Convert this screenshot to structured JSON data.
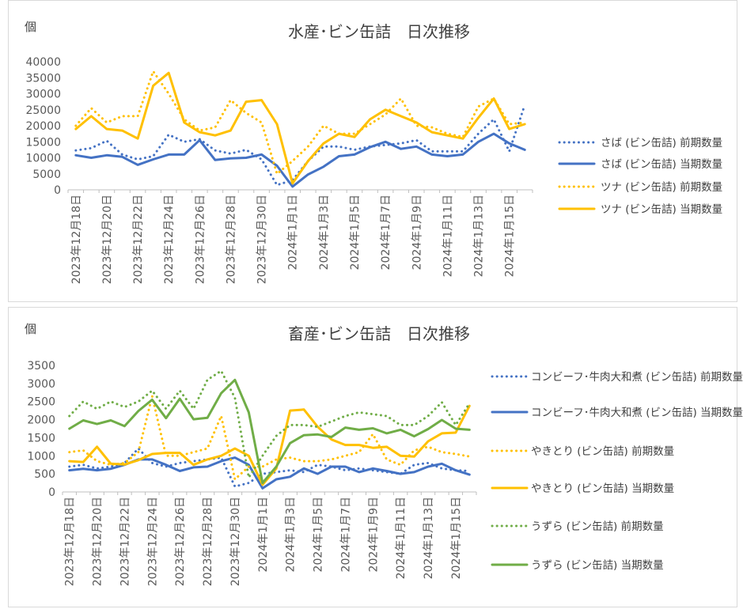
{
  "chart_data": [
    {
      "type": "line",
      "title": "水産･ビン缶詰　日次推移",
      "unit_label": "個",
      "ylim": [
        0,
        40000
      ],
      "yticks": [
        "0",
        "5000",
        "10000",
        "15000",
        "20000",
        "25000",
        "30000",
        "35000",
        "40000"
      ],
      "categories": [
        "2023年12月18日",
        "2023年12月19日",
        "2023年12月20日",
        "2023年12月21日",
        "2023年12月22日",
        "2023年12月23日",
        "2023年12月24日",
        "2023年12月25日",
        "2023年12月26日",
        "2023年12月27日",
        "2023年12月28日",
        "2023年12月29日",
        "2023年12月30日",
        "2023年12月31日",
        "2024年1月1日",
        "2024年1月2日",
        "2024年1月3日",
        "2024年1月4日",
        "2024年1月5日",
        "2024年1月6日",
        "2024年1月7日",
        "2024年1月8日",
        "2024年1月9日",
        "2024年1月10日",
        "2024年1月11日",
        "2024年1月12日",
        "2024年1月13日",
        "2024年1月14日",
        "2024年1月15日",
        "2024年1月16日"
      ],
      "xtick_labels": [
        "2023年12月18日",
        "",
        "2023年12月20日",
        "",
        "2023年12月22日",
        "",
        "2023年12月24日",
        "",
        "2023年12月26日",
        "",
        "2023年12月28日",
        "",
        "2023年12月30日",
        "",
        "2024年1月1日",
        "",
        "2024年1月3日",
        "",
        "2024年1月5日",
        "",
        "2024年1月7日",
        "",
        "2024年1月9日",
        "",
        "2024年1月11日",
        "",
        "2024年1月13日",
        "",
        "2024年1月15日",
        ""
      ],
      "legend_position": "right",
      "grid": false,
      "series": [
        {
          "name": "さば (ビン缶詰) 前期数量",
          "color": "#4472C4",
          "dash": "dotted",
          "values": [
            12300,
            13000,
            15300,
            11000,
            9500,
            10500,
            17200,
            15000,
            15800,
            12300,
            11300,
            12500,
            9500,
            1500,
            3000,
            9000,
            13500,
            13500,
            12500,
            13500,
            14000,
            14500,
            15500,
            12000,
            12000,
            12000,
            17500,
            22000,
            12000,
            26500
          ]
        },
        {
          "name": "さば (ビン缶詰) 当期数量",
          "color": "#4472C4",
          "dash": "solid",
          "values": [
            10800,
            10000,
            10800,
            10300,
            7800,
            9500,
            11000,
            11000,
            15500,
            9300,
            9800,
            10000,
            11000,
            7500,
            1000,
            4800,
            7200,
            10500,
            11000,
            13300,
            15000,
            12800,
            13500,
            11000,
            10500,
            11000,
            15000,
            17500,
            14500,
            12500
          ]
        },
        {
          "name": "ツナ (ビン缶詰) 前期数量",
          "color": "#FFC000",
          "dash": "dotted",
          "values": [
            20000,
            25500,
            21000,
            23000,
            23000,
            37000,
            30000,
            22000,
            18500,
            19500,
            28000,
            24000,
            21000,
            5000,
            9000,
            13500,
            20000,
            17500,
            17500,
            20500,
            23500,
            28500,
            20000,
            19500,
            17500,
            16500,
            26000,
            28500,
            20500,
            21000
          ]
        },
        {
          "name": "ツナ (ビン缶詰) 当期数量",
          "color": "#FFC000",
          "dash": "solid",
          "values": [
            19000,
            23000,
            19000,
            18500,
            16000,
            32500,
            36500,
            21000,
            18000,
            17000,
            18500,
            27500,
            28000,
            20500,
            2000,
            9000,
            14500,
            17500,
            16500,
            22000,
            25000,
            23000,
            21000,
            18000,
            17000,
            16000,
            22500,
            28500,
            19000,
            20500
          ]
        }
      ]
    },
    {
      "type": "line",
      "title": "畜産･ビン缶詰　日次推移",
      "unit_label": "個",
      "ylim": [
        0,
        3500
      ],
      "yticks": [
        "0",
        "500",
        "1000",
        "1500",
        "2000",
        "2500",
        "3000",
        "3500"
      ],
      "categories": [
        "2023年12月18日",
        "2023年12月19日",
        "2023年12月20日",
        "2023年12月21日",
        "2023年12月22日",
        "2023年12月23日",
        "2023年12月24日",
        "2023年12月25日",
        "2023年12月26日",
        "2023年12月27日",
        "2023年12月28日",
        "2023年12月29日",
        "2023年12月30日",
        "2023年12月31日",
        "2024年1月1日",
        "2024年1月2日",
        "2024年1月3日",
        "2024年1月4日",
        "2024年1月5日",
        "2024年1月6日",
        "2024年1月7日",
        "2024年1月8日",
        "2024年1月9日",
        "2024年1月10日",
        "2024年1月11日",
        "2024年1月12日",
        "2024年1月13日",
        "2024年1月14日",
        "2024年1月15日",
        "2024年1月16日"
      ],
      "xtick_labels": [
        "2023年12月18日",
        "",
        "2023年12月20日",
        "",
        "2023年12月22日",
        "",
        "2023年12月24日",
        "",
        "2023年12月26日",
        "",
        "2023年12月28日",
        "",
        "2023年12月30日",
        "",
        "2024年1月1日",
        "",
        "2024年1月3日",
        "",
        "2024年1月5日",
        "",
        "2024年1月7日",
        "",
        "2024年1月9日",
        "",
        "2024年1月11日",
        "",
        "2024年1月13日",
        "",
        "2024年1月15日",
        ""
      ],
      "legend_position": "right",
      "grid": false,
      "series": [
        {
          "name": "コンビーフ･牛肉大和煮 (ビン缶詰) 前期数量",
          "color": "#4472C4",
          "dash": "dotted",
          "values": [
            700,
            750,
            650,
            700,
            800,
            1200,
            800,
            700,
            800,
            850,
            900,
            950,
            150,
            250,
            500,
            550,
            600,
            550,
            750,
            700,
            600,
            650,
            600,
            550,
            500,
            750,
            800,
            650,
            600,
            580
          ]
        },
        {
          "name": "コンビーフ･牛肉大和煮 (ビン缶詰) 当期数量",
          "color": "#4472C4",
          "dash": "solid",
          "values": [
            600,
            640,
            600,
            640,
            750,
            900,
            900,
            750,
            580,
            680,
            700,
            850,
            950,
            750,
            100,
            350,
            420,
            650,
            500,
            700,
            700,
            550,
            650,
            580,
            500,
            550,
            700,
            780,
            600,
            480
          ]
        },
        {
          "name": "やきとり (ビン缶詰) 前期数量",
          "color": "#FFC000",
          "dash": "dotted",
          "values": [
            1100,
            1150,
            850,
            750,
            800,
            1100,
            2650,
            1000,
            1000,
            1100,
            1200,
            2100,
            350,
            700,
            700,
            900,
            950,
            850,
            850,
            900,
            1000,
            1100,
            1600,
            900,
            750,
            1150,
            1250,
            1100,
            1050,
            980
          ]
        },
        {
          "name": "やきとり (ビン缶詰) 当期数量",
          "color": "#FFC000",
          "dash": "solid",
          "values": [
            850,
            830,
            1250,
            780,
            760,
            880,
            1050,
            1080,
            1080,
            750,
            900,
            1000,
            1200,
            1000,
            200,
            650,
            2250,
            2280,
            1800,
            1450,
            1300,
            1300,
            1220,
            1250,
            1000,
            980,
            1400,
            1620,
            1640,
            2380
          ]
        },
        {
          "name": "うずら (ビン缶詰) 前期数量",
          "color": "#70AD47",
          "dash": "dotted",
          "values": [
            2100,
            2500,
            2300,
            2500,
            2350,
            2500,
            2800,
            2300,
            2800,
            2300,
            3100,
            3350,
            2600,
            400,
            1000,
            1550,
            1850,
            1850,
            1800,
            1950,
            2100,
            2200,
            2150,
            2100,
            1850,
            1850,
            2100,
            2480,
            1850,
            2450
          ]
        },
        {
          "name": "うずら (ビン缶詰) 当期数量",
          "color": "#70AD47",
          "dash": "solid",
          "values": [
            1750,
            1980,
            1880,
            1980,
            1820,
            2240,
            2550,
            2040,
            2580,
            2010,
            2050,
            2730,
            3100,
            2200,
            250,
            700,
            1350,
            1570,
            1590,
            1520,
            1780,
            1720,
            1760,
            1620,
            1720,
            1540,
            1740,
            1990,
            1750,
            1720
          ]
        }
      ]
    }
  ]
}
